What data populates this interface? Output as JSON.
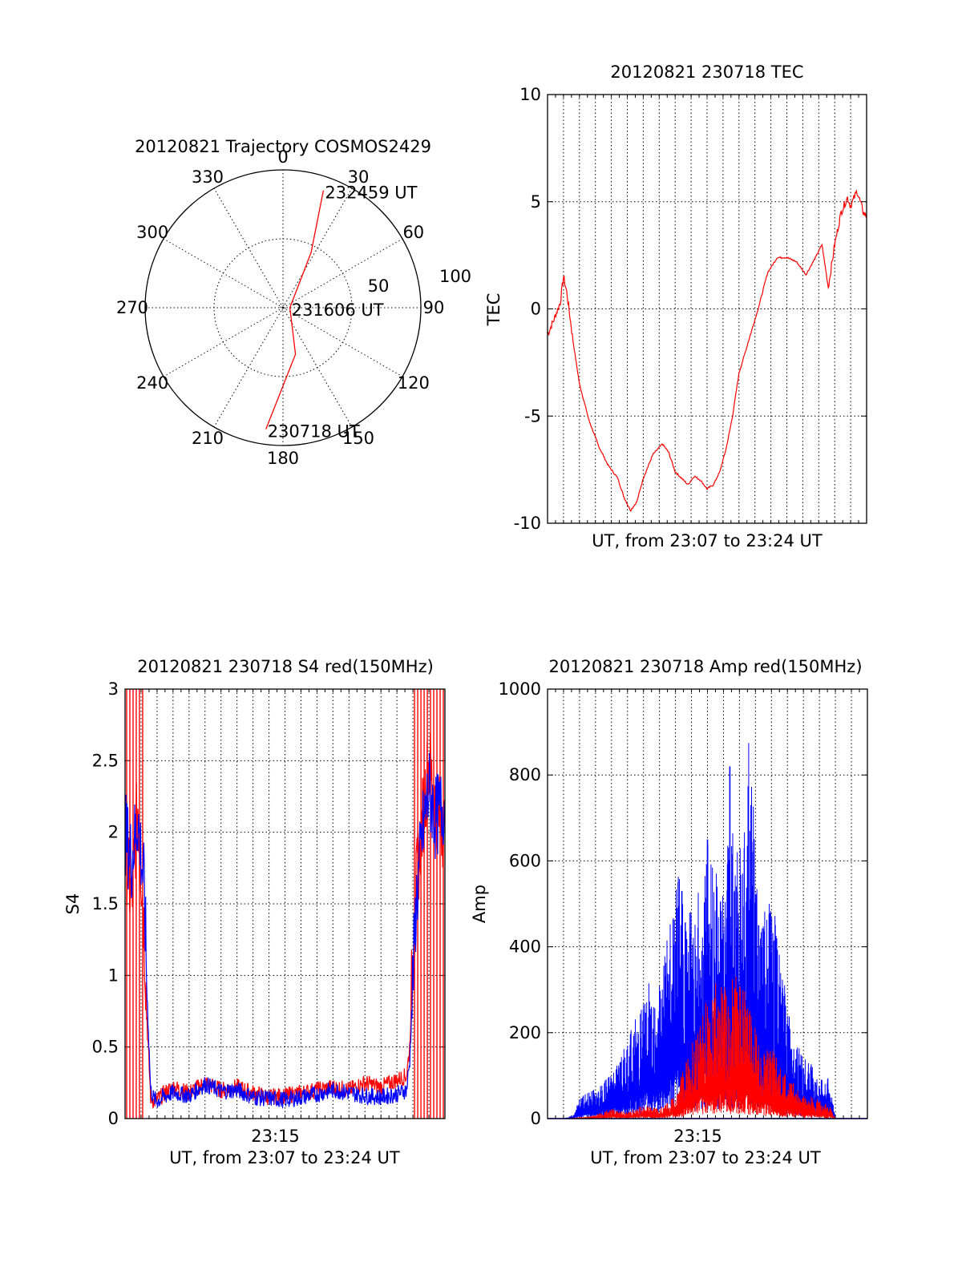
{
  "colors": {
    "red": "#ff0000",
    "blue": "#0000ff",
    "axes": "#000000"
  },
  "chart_data": [
    {
      "id": "trajectory",
      "type": "polar",
      "title": "20120821 Trajectory COSMOS2429",
      "angle_labels": [
        "0",
        "30",
        "60",
        "90",
        "120",
        "150",
        "180",
        "210",
        "240",
        "270",
        "300",
        "330"
      ],
      "angles": [
        0,
        30,
        60,
        90,
        120,
        150,
        180,
        210,
        240,
        270,
        300,
        330
      ],
      "radial_labels": [
        "50",
        "100"
      ],
      "radial_values": [
        50,
        100
      ],
      "rmax": 100,
      "track": {
        "color": "#ff0000",
        "points": [
          {
            "az": 188,
            "r": 89
          },
          {
            "az": 165,
            "r": 35
          },
          {
            "az": 90,
            "r": 5
          },
          {
            "az": 27,
            "r": 45
          },
          {
            "az": 19,
            "r": 90
          }
        ]
      },
      "annotations": [
        {
          "text": "232459 UT",
          "az": 19,
          "r": 90
        },
        {
          "text": "231606 UT",
          "az": 90,
          "r": 5
        },
        {
          "text": "230718 UT",
          "az": 188,
          "r": 89
        }
      ]
    },
    {
      "id": "tec",
      "type": "line",
      "title": "20120821 230718 TEC",
      "ylabel": "TEC",
      "xlabel": "UT, from 23:07 to 23:24 UT",
      "ylim": [
        -10,
        10
      ],
      "yticks": [
        "-10",
        "-5",
        "0",
        "5",
        "10"
      ],
      "ytick_values": [
        -10,
        -5,
        0,
        5,
        10
      ],
      "xlim": [
        0,
        1
      ],
      "grid": true,
      "series": [
        {
          "color": "#ff0000",
          "x": [
            0.0,
            0.02,
            0.04,
            0.05,
            0.06,
            0.08,
            0.1,
            0.13,
            0.16,
            0.19,
            0.22,
            0.24,
            0.26,
            0.28,
            0.3,
            0.33,
            0.36,
            0.38,
            0.4,
            0.42,
            0.44,
            0.46,
            0.48,
            0.5,
            0.52,
            0.54,
            0.56,
            0.58,
            0.6,
            0.63,
            0.66,
            0.69,
            0.72,
            0.75,
            0.78,
            0.81,
            0.84,
            0.86,
            0.88,
            0.9,
            0.92,
            0.94,
            0.95,
            0.97,
            0.99,
            1.0
          ],
          "y": [
            -1.2,
            -0.5,
            0.3,
            1.5,
            0.8,
            -1.5,
            -3.5,
            -5.2,
            -6.4,
            -7.3,
            -7.9,
            -8.8,
            -9.4,
            -9.0,
            -7.9,
            -6.8,
            -6.3,
            -6.7,
            -7.6,
            -7.9,
            -8.2,
            -7.8,
            -8.0,
            -8.4,
            -8.2,
            -7.6,
            -6.5,
            -5.0,
            -3.0,
            -1.5,
            0.0,
            1.7,
            2.4,
            2.4,
            2.2,
            1.6,
            2.4,
            3.0,
            1.0,
            3.0,
            4.5,
            5.2,
            4.8,
            5.5,
            4.5,
            4.3
          ]
        }
      ]
    },
    {
      "id": "s4",
      "type": "line",
      "title": "20120821 230718 S4 red(150MHz)",
      "ylabel": "S4",
      "xlabel": "UT, from 23:07 to 23:24 UT",
      "xtick_label": "23:15",
      "xtick_value": 0.47,
      "ylim": [
        0,
        3
      ],
      "yticks": [
        "0",
        "0.5",
        "1",
        "1.5",
        "2",
        "2.5",
        "3"
      ],
      "ytick_values": [
        0,
        0.5,
        1,
        1.5,
        2,
        2.5,
        3
      ],
      "grid": true,
      "series": [
        {
          "name": "",
          "color": "#ff0000",
          "x": [
            0.0,
            0.02,
            0.04,
            0.06,
            0.07,
            0.08,
            0.09,
            0.1,
            0.12,
            0.15,
            0.2,
            0.25,
            0.3,
            0.35,
            0.4,
            0.45,
            0.5,
            0.55,
            0.6,
            0.65,
            0.7,
            0.75,
            0.8,
            0.85,
            0.88,
            0.89,
            0.9,
            0.91,
            0.93,
            0.95,
            0.97,
            1.0
          ],
          "y": [
            1.9,
            1.5,
            2.2,
            1.3,
            0.6,
            0.15,
            0.12,
            0.13,
            0.17,
            0.22,
            0.18,
            0.25,
            0.2,
            0.22,
            0.18,
            0.15,
            0.16,
            0.18,
            0.2,
            0.22,
            0.2,
            0.25,
            0.22,
            0.27,
            0.3,
            0.5,
            1.2,
            1.6,
            2.1,
            2.5,
            2.2,
            2.0
          ]
        },
        {
          "name": "",
          "color": "#0000ff",
          "x": [
            0.0,
            0.02,
            0.04,
            0.06,
            0.07,
            0.08,
            0.09,
            0.1,
            0.12,
            0.15,
            0.2,
            0.25,
            0.3,
            0.35,
            0.4,
            0.45,
            0.5,
            0.55,
            0.6,
            0.65,
            0.7,
            0.75,
            0.8,
            0.85,
            0.88,
            0.89,
            0.9,
            0.91,
            0.93,
            0.95,
            0.97,
            1.0
          ],
          "y": [
            2.0,
            1.8,
            2.1,
            1.6,
            0.8,
            0.2,
            0.14,
            0.12,
            0.15,
            0.18,
            0.16,
            0.24,
            0.19,
            0.2,
            0.15,
            0.14,
            0.13,
            0.15,
            0.17,
            0.2,
            0.18,
            0.16,
            0.15,
            0.17,
            0.2,
            0.4,
            1.0,
            1.5,
            2.0,
            2.3,
            2.1,
            2.2
          ]
        }
      ],
      "spikes": {
        "color": "#ff0000",
        "x": [
          0.005,
          0.015,
          0.025,
          0.035,
          0.045,
          0.055,
          0.905,
          0.915,
          0.925,
          0.935,
          0.945,
          0.955,
          0.965,
          0.975,
          0.985,
          0.995
        ]
      }
    },
    {
      "id": "amp",
      "type": "line",
      "title": "20120821 230718 Amp red(150MHz)",
      "ylabel": "Amp",
      "xlabel": "UT, from 23:07 to 23:24 UT",
      "xtick_label": "23:15",
      "xtick_value": 0.47,
      "ylim": [
        0,
        1000
      ],
      "yticks": [
        "0",
        "200",
        "400",
        "600",
        "800",
        "1000"
      ],
      "ytick_values": [
        0,
        200,
        400,
        600,
        800,
        1000
      ],
      "grid": true,
      "series": [
        {
          "color": "#ff0000",
          "x": [
            0.0,
            0.05,
            0.1,
            0.15,
            0.2,
            0.25,
            0.3,
            0.35,
            0.4,
            0.43,
            0.46,
            0.49,
            0.52,
            0.55,
            0.58,
            0.61,
            0.64,
            0.67,
            0.7,
            0.73,
            0.76,
            0.8,
            0.84,
            0.88,
            0.9,
            0.95,
            1.0
          ],
          "y": [
            0,
            0,
            2,
            5,
            15,
            10,
            20,
            15,
            35,
            80,
            120,
            170,
            200,
            190,
            210,
            200,
            150,
            100,
            110,
            70,
            60,
            35,
            30,
            20,
            0,
            0,
            0
          ]
        },
        {
          "color": "#0000ff",
          "x": [
            0.0,
            0.05,
            0.08,
            0.1,
            0.13,
            0.16,
            0.2,
            0.23,
            0.26,
            0.29,
            0.32,
            0.35,
            0.38,
            0.41,
            0.44,
            0.47,
            0.5,
            0.52,
            0.55,
            0.57,
            0.6,
            0.63,
            0.66,
            0.68,
            0.7,
            0.73,
            0.76,
            0.8,
            0.83,
            0.86,
            0.88,
            0.9,
            0.95,
            1.0
          ],
          "y": [
            0,
            0,
            5,
            30,
            40,
            45,
            70,
            90,
            130,
            170,
            200,
            220,
            280,
            360,
            320,
            330,
            400,
            450,
            330,
            480,
            390,
            560,
            340,
            300,
            340,
            220,
            150,
            90,
            80,
            55,
            60,
            0,
            0,
            0
          ]
        }
      ],
      "peaks": {
        "color": "#0000ff",
        "items": [
          {
            "x": 0.42,
            "y": 530
          },
          {
            "x": 0.5,
            "y": 650
          },
          {
            "x": 0.57,
            "y": 820
          },
          {
            "x": 0.66,
            "y": 450
          }
        ]
      }
    }
  ]
}
